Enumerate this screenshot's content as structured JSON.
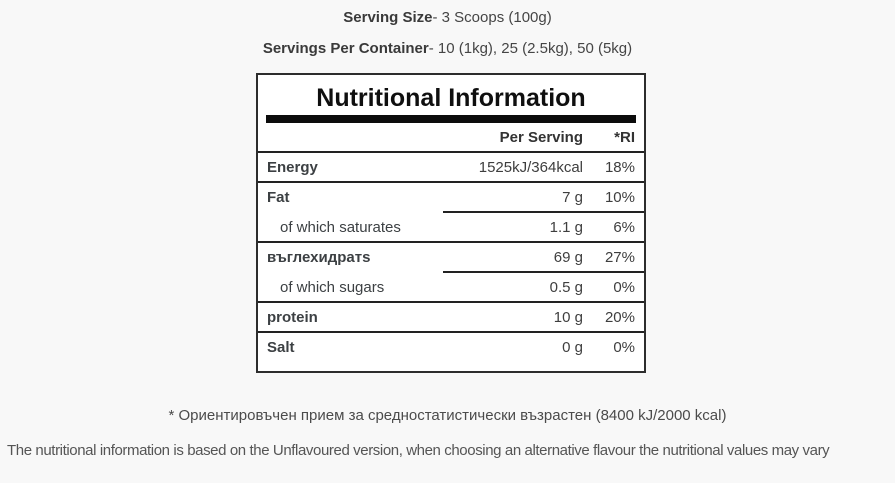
{
  "header": {
    "serving_size": {
      "label": "Serving Size",
      "value": "- 3 Scoops (100g)"
    },
    "servings_per_container": {
      "label": "Servings Per Container",
      "value": "- 10 (1kg), 25 (2.5kg), 50 (5kg)"
    }
  },
  "table": {
    "title": "Nutritional Information",
    "columns": {
      "per_serving": "Per Serving",
      "ri": "*RI"
    },
    "rows": [
      {
        "label": "Energy",
        "per_serving": "1525kJ/364kcal",
        "ri": "18%"
      },
      {
        "label": "Fat",
        "per_serving": "7 g",
        "ri": "10%"
      },
      {
        "label": "of which saturates",
        "per_serving": "1.1 g",
        "ri": "6%"
      },
      {
        "label": "въглехидратs",
        "per_serving": "69 g",
        "ri": "27%"
      },
      {
        "label": "of which sugars",
        "per_serving": "0.5 g",
        "ri": "0%"
      },
      {
        "label": "protein",
        "per_serving": "10 g",
        "ri": "20%"
      },
      {
        "label": "Salt",
        "per_serving": "0 g",
        "ri": "0%"
      }
    ]
  },
  "footnotes": {
    "ri_note": "* Ориентировъчен прием за средностатистически възрастен (8400 kJ/2000 kcal)",
    "flavour_note": "The nutritional information is based on the Unflavoured version, when choosing an alternative flavour the nutritional values may vary"
  },
  "colors": {
    "page_bg": "#f8f8f8",
    "table_bg": "#ffffff",
    "table_border": "#2d2d2d",
    "title_bar": "#0c0c0c",
    "row_separator": "#222222",
    "text": "#3e3e3e",
    "muted_text": "#555555"
  }
}
